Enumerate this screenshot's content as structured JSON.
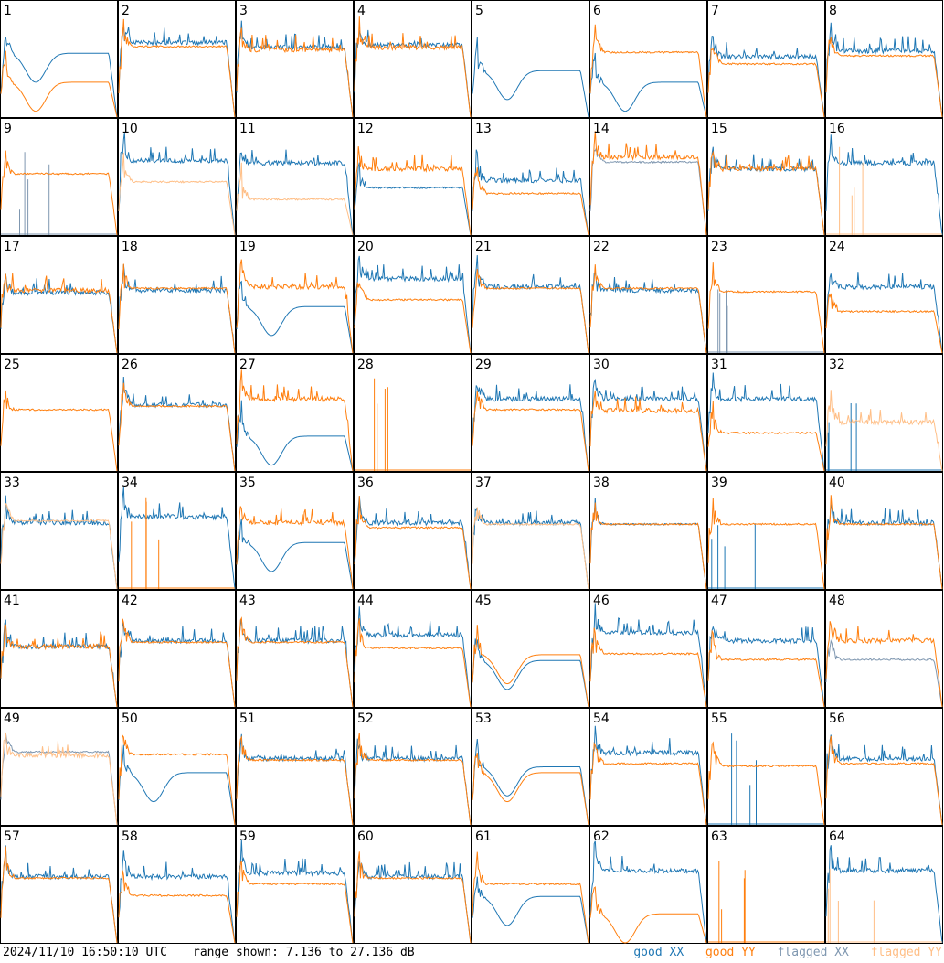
{
  "footer": {
    "timestamp": "2024/11/10 16:50:10 UTC",
    "range_text": "range shown: 7.136 to 27.136 dB"
  },
  "legend": [
    {
      "label": "good XX",
      "color": "#1f77b4"
    },
    {
      "label": "good YY",
      "color": "#ff7f0e"
    },
    {
      "label": "flagged XX",
      "color": "#7f97b0"
    },
    {
      "label": "flagged YY",
      "color": "#ffbf87"
    }
  ],
  "chart_data": {
    "type": "line",
    "layout": "8x8 small multiples",
    "units": "dB",
    "y_range": [
      7.136,
      27.136
    ],
    "antennas": [
      {
        "id": "1",
        "xx": "good",
        "yy": "good",
        "xx_level": 0.55,
        "yy_level": 0.3,
        "xx_shape": "dip",
        "yy_shape": "dip"
      },
      {
        "id": "2",
        "xx": "good",
        "yy": "good",
        "xx_level": 0.62,
        "yy_level": 0.6,
        "xx_shape": "spiky",
        "yy_shape": "flat"
      },
      {
        "id": "3",
        "xx": "good",
        "yy": "good",
        "xx_level": 0.58,
        "yy_level": 0.56,
        "xx_shape": "spiky",
        "yy_shape": "spiky"
      },
      {
        "id": "4",
        "xx": "good",
        "yy": "good",
        "xx_level": 0.6,
        "yy_level": 0.58,
        "xx_shape": "spiky",
        "yy_shape": "spiky"
      },
      {
        "id": "5",
        "xx": "good",
        "yy": "good",
        "xx_level": 0.4,
        "yy_level": null,
        "xx_shape": "dip",
        "yy_shape": "none"
      },
      {
        "id": "6",
        "xx": "good",
        "yy": "good",
        "xx_level": 0.3,
        "yy_level": 0.55,
        "xx_shape": "dip",
        "yy_shape": "flat"
      },
      {
        "id": "7",
        "xx": "good",
        "yy": "good",
        "xx_level": 0.5,
        "yy_level": 0.45,
        "xx_shape": "spiky",
        "yy_shape": "flat"
      },
      {
        "id": "8",
        "xx": "good",
        "yy": "good",
        "xx_level": 0.55,
        "yy_level": 0.52,
        "xx_shape": "spiky",
        "yy_shape": "flat"
      },
      {
        "id": "9",
        "xx": "flagged",
        "yy": "good",
        "xx_level": 0.05,
        "yy_level": 0.52,
        "xx_shape": "sparse",
        "yy_shape": "flat"
      },
      {
        "id": "10",
        "xx": "good",
        "yy": "flagged",
        "xx_level": 0.62,
        "yy_level": 0.45,
        "xx_shape": "spiky",
        "yy_shape": "flat"
      },
      {
        "id": "11",
        "xx": "good",
        "yy": "flagged",
        "xx_level": 0.6,
        "yy_level": 0.3,
        "xx_shape": "spiky",
        "yy_shape": "flat"
      },
      {
        "id": "12",
        "xx": "good",
        "yy": "good",
        "xx_level": 0.4,
        "yy_level": 0.55,
        "xx_shape": "flat",
        "yy_shape": "spiky"
      },
      {
        "id": "13",
        "xx": "good",
        "yy": "good",
        "xx_level": 0.45,
        "yy_level": 0.35,
        "xx_shape": "spiky",
        "yy_shape": "flat"
      },
      {
        "id": "14",
        "xx": "flagged",
        "yy": "good",
        "xx_level": 0.62,
        "yy_level": 0.65,
        "xx_shape": "flat",
        "yy_shape": "spiky"
      },
      {
        "id": "15",
        "xx": "good",
        "yy": "good",
        "xx_level": 0.55,
        "yy_level": 0.55,
        "xx_shape": "spiky",
        "yy_shape": "spiky"
      },
      {
        "id": "16",
        "xx": "good",
        "yy": "flagged",
        "xx_level": 0.6,
        "yy_level": 0.02,
        "xx_shape": "spiky",
        "yy_shape": "sparse"
      },
      {
        "id": "17",
        "xx": "good",
        "yy": "good",
        "xx_level": 0.5,
        "yy_level": 0.52,
        "xx_shape": "spiky",
        "yy_shape": "spiky"
      },
      {
        "id": "18",
        "xx": "good",
        "yy": "good",
        "xx_level": 0.52,
        "yy_level": 0.55,
        "xx_shape": "spiky",
        "yy_shape": "flat"
      },
      {
        "id": "19",
        "xx": "good",
        "yy": "good",
        "xx_level": 0.4,
        "yy_level": 0.55,
        "xx_shape": "dip",
        "yy_shape": "spiky"
      },
      {
        "id": "20",
        "xx": "good",
        "yy": "good",
        "xx_level": 0.62,
        "yy_level": 0.45,
        "xx_shape": "spiky",
        "yy_shape": "flat"
      },
      {
        "id": "21",
        "xx": "good",
        "yy": "good",
        "xx_level": 0.55,
        "yy_level": 0.55,
        "xx_shape": "spiky",
        "yy_shape": "flat"
      },
      {
        "id": "22",
        "xx": "good",
        "yy": "good",
        "xx_level": 0.52,
        "yy_level": 0.55,
        "xx_shape": "spiky",
        "yy_shape": "flat"
      },
      {
        "id": "23",
        "xx": "flagged",
        "yy": "good",
        "xx_level": 0.3,
        "yy_level": 0.52,
        "xx_shape": "sparse",
        "yy_shape": "flat"
      },
      {
        "id": "24",
        "xx": "good",
        "yy": "good",
        "xx_level": 0.55,
        "yy_level": 0.35,
        "xx_shape": "spiky",
        "yy_shape": "flat"
      },
      {
        "id": "25",
        "xx": "good",
        "yy": "good",
        "xx_level": null,
        "yy_level": 0.52,
        "xx_shape": "none",
        "yy_shape": "flat"
      },
      {
        "id": "26",
        "xx": "good",
        "yy": "good",
        "xx_level": 0.55,
        "yy_level": 0.55,
        "xx_shape": "spiky",
        "yy_shape": "flat"
      },
      {
        "id": "27",
        "xx": "good",
        "yy": "good",
        "xx_level": 0.3,
        "yy_level": 0.6,
        "xx_shape": "dip",
        "yy_shape": "spiky"
      },
      {
        "id": "28",
        "xx": "good",
        "yy": "good",
        "xx_level": null,
        "yy_level": 0.02,
        "xx_shape": "none",
        "yy_shape": "sparse"
      },
      {
        "id": "29",
        "xx": "good",
        "yy": "good",
        "xx_level": 0.6,
        "yy_level": 0.52,
        "xx_shape": "spiky",
        "yy_shape": "flat"
      },
      {
        "id": "30",
        "xx": "good",
        "yy": "good",
        "xx_level": 0.6,
        "yy_level": 0.5,
        "xx_shape": "spiky",
        "yy_shape": "spiky"
      },
      {
        "id": "31",
        "xx": "good",
        "yy": "good",
        "xx_level": 0.6,
        "yy_level": 0.32,
        "xx_shape": "spiky",
        "yy_shape": "flat"
      },
      {
        "id": "32",
        "xx": "good",
        "yy": "flagged",
        "xx_level": 0.02,
        "yy_level": 0.4,
        "xx_shape": "sparse",
        "yy_shape": "spiky"
      },
      {
        "id": "33",
        "xx": "good",
        "yy": "flagged",
        "xx_level": 0.55,
        "yy_level": 0.58,
        "xx_shape": "spiky",
        "yy_shape": "flat"
      },
      {
        "id": "34",
        "xx": "good",
        "yy": "good",
        "xx_level": 0.6,
        "yy_level": 0.02,
        "xx_shape": "spiky",
        "yy_shape": "sparse"
      },
      {
        "id": "35",
        "xx": "good",
        "yy": "good",
        "xx_level": 0.4,
        "yy_level": 0.55,
        "xx_shape": "dip",
        "yy_shape": "spiky"
      },
      {
        "id": "36",
        "xx": "good",
        "yy": "good",
        "xx_level": 0.55,
        "yy_level": 0.52,
        "xx_shape": "spiky",
        "yy_shape": "flat"
      },
      {
        "id": "37",
        "xx": "good",
        "yy": "flagged",
        "xx_level": 0.55,
        "yy_level": 0.55,
        "xx_shape": "spiky",
        "yy_shape": "flat"
      },
      {
        "id": "38",
        "xx": "good",
        "yy": "good",
        "xx_level": 0.55,
        "yy_level": 0.55,
        "xx_shape": "flat",
        "yy_shape": "flat"
      },
      {
        "id": "39",
        "xx": "good",
        "yy": "good",
        "xx_level": 0.02,
        "yy_level": 0.55,
        "xx_shape": "sparse",
        "yy_shape": "flat"
      },
      {
        "id": "40",
        "xx": "good",
        "yy": "good",
        "xx_level": 0.55,
        "yy_level": 0.55,
        "xx_shape": "spiky",
        "yy_shape": "flat"
      },
      {
        "id": "41",
        "xx": "good",
        "yy": "good",
        "xx_level": 0.5,
        "yy_level": 0.5,
        "xx_shape": "spiky",
        "yy_shape": "spiky"
      },
      {
        "id": "42",
        "xx": "good",
        "yy": "good",
        "xx_level": 0.55,
        "yy_level": 0.55,
        "xx_shape": "spiky",
        "yy_shape": "flat"
      },
      {
        "id": "43",
        "xx": "good",
        "yy": "good",
        "xx_level": 0.55,
        "yy_level": 0.55,
        "xx_shape": "spiky",
        "yy_shape": "flat"
      },
      {
        "id": "44",
        "xx": "good",
        "yy": "good",
        "xx_level": 0.6,
        "yy_level": 0.5,
        "xx_shape": "spiky",
        "yy_shape": "flat"
      },
      {
        "id": "45",
        "xx": "good",
        "yy": "good",
        "xx_level": 0.4,
        "yy_level": 0.45,
        "xx_shape": "dip",
        "yy_shape": "dip"
      },
      {
        "id": "46",
        "xx": "good",
        "yy": "good",
        "xx_level": 0.62,
        "yy_level": 0.45,
        "xx_shape": "spiky",
        "yy_shape": "flat"
      },
      {
        "id": "47",
        "xx": "good",
        "yy": "good",
        "xx_level": 0.55,
        "yy_level": 0.4,
        "xx_shape": "spiky",
        "yy_shape": "flat"
      },
      {
        "id": "48",
        "xx": "flagged",
        "yy": "good",
        "xx_level": 0.4,
        "yy_level": 0.55,
        "xx_shape": "flat",
        "yy_shape": "spiky"
      },
      {
        "id": "49",
        "xx": "flagged",
        "yy": "flagged",
        "xx_level": 0.62,
        "yy_level": 0.58,
        "xx_shape": "flat",
        "yy_shape": "spiky"
      },
      {
        "id": "50",
        "xx": "good",
        "yy": "good",
        "xx_level": 0.45,
        "yy_level": 0.6,
        "xx_shape": "dip",
        "yy_shape": "flat"
      },
      {
        "id": "51",
        "xx": "good",
        "yy": "good",
        "xx_level": 0.55,
        "yy_level": 0.55,
        "xx_shape": "spiky",
        "yy_shape": "flat"
      },
      {
        "id": "52",
        "xx": "good",
        "yy": "good",
        "xx_level": 0.55,
        "yy_level": 0.55,
        "xx_shape": "spiky",
        "yy_shape": "flat"
      },
      {
        "id": "53",
        "xx": "good",
        "yy": "good",
        "xx_level": 0.5,
        "yy_level": 0.45,
        "xx_shape": "dip",
        "yy_shape": "dip"
      },
      {
        "id": "54",
        "xx": "good",
        "yy": "good",
        "xx_level": 0.6,
        "yy_level": 0.52,
        "xx_shape": "spiky",
        "yy_shape": "flat"
      },
      {
        "id": "55",
        "xx": "good",
        "yy": "good",
        "xx_level": 0.05,
        "yy_level": 0.5,
        "xx_shape": "sparse",
        "yy_shape": "flat"
      },
      {
        "id": "56",
        "xx": "good",
        "yy": "good",
        "xx_level": 0.55,
        "yy_level": 0.52,
        "xx_shape": "spiky",
        "yy_shape": "flat"
      },
      {
        "id": "57",
        "xx": "good",
        "yy": "good",
        "xx_level": 0.55,
        "yy_level": 0.55,
        "xx_shape": "spiky",
        "yy_shape": "flat"
      },
      {
        "id": "58",
        "xx": "good",
        "yy": "good",
        "xx_level": 0.55,
        "yy_level": 0.4,
        "xx_shape": "spiky",
        "yy_shape": "flat"
      },
      {
        "id": "59",
        "xx": "good",
        "yy": "good",
        "xx_level": 0.58,
        "yy_level": 0.5,
        "xx_shape": "spiky",
        "yy_shape": "flat"
      },
      {
        "id": "60",
        "xx": "good",
        "yy": "good",
        "xx_level": 0.55,
        "yy_level": 0.55,
        "xx_shape": "spiky",
        "yy_shape": "flat"
      },
      {
        "id": "61",
        "xx": "good",
        "yy": "good",
        "xx_level": 0.4,
        "yy_level": 0.5,
        "xx_shape": "dip",
        "yy_shape": "flat"
      },
      {
        "id": "62",
        "xx": "good",
        "yy": "good",
        "xx_level": 0.6,
        "yy_level": 0.25,
        "xx_shape": "spiky",
        "yy_shape": "dip"
      },
      {
        "id": "63",
        "xx": "good",
        "yy": "good",
        "xx_level": null,
        "yy_level": 0.02,
        "xx_shape": "none",
        "yy_shape": "sparse"
      },
      {
        "id": "64",
        "xx": "good",
        "yy": "flagged",
        "xx_level": 0.6,
        "yy_level": 0.02,
        "xx_shape": "spiky",
        "yy_shape": "sparse"
      }
    ]
  }
}
